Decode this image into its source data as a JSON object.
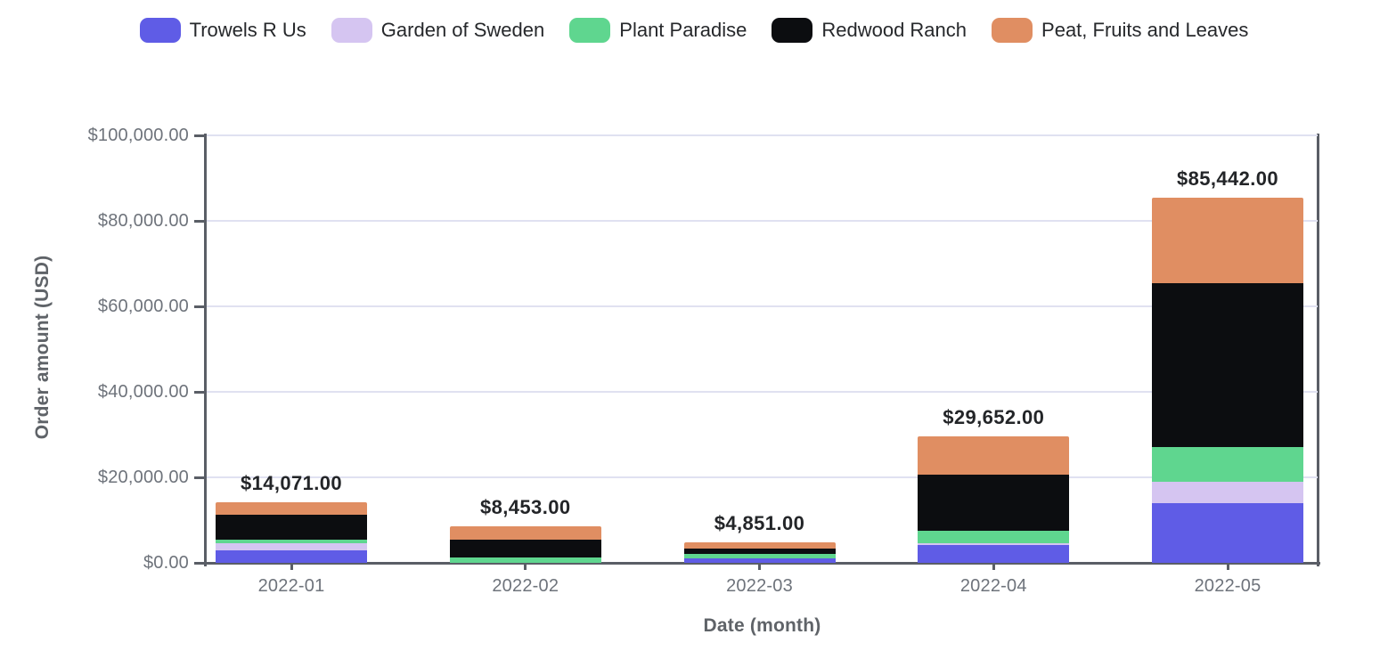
{
  "chart_data": {
    "type": "bar",
    "stacked": true,
    "title": "",
    "xlabel": "Date (month)",
    "ylabel": "Order amount (USD)",
    "legend_position": "top",
    "grid": true,
    "categories": [
      "2022-01",
      "2022-02",
      "2022-03",
      "2022-04",
      "2022-05"
    ],
    "series": [
      {
        "name": "Trowels R Us",
        "color": "#5f5ce6",
        "values": [
          2900,
          0,
          950,
          4100,
          14000
        ]
      },
      {
        "name": "Garden of Sweden",
        "color": "#d5c5f1",
        "values": [
          1650,
          0,
          0,
          490,
          5000
        ]
      },
      {
        "name": "Plant Paradise",
        "color": "#5fd68f",
        "values": [
          890,
          1250,
          1070,
          2960,
          8050
        ]
      },
      {
        "name": "Redwood Ranch",
        "color": "#0c0d10",
        "values": [
          5730,
          4100,
          1260,
          13150,
          38450
        ]
      },
      {
        "name": "Peat, Fruits and Leaves",
        "color": "#e08e62",
        "values": [
          2901,
          3103,
          1571,
          8952,
          19942
        ]
      }
    ],
    "totals": [
      14071,
      8453,
      4851,
      29652,
      85442
    ],
    "total_labels": [
      "$14,071.00",
      "$8,453.00",
      "$4,851.00",
      "$29,652.00",
      "$85,442.00"
    ],
    "ylim": [
      0,
      100000
    ],
    "y_ticks": [
      0,
      20000,
      40000,
      60000,
      80000,
      100000
    ],
    "y_tick_labels": [
      "$0.00",
      "$20,000.00",
      "$40,000.00",
      "$60,000.00",
      "$80,000.00",
      "$100,000.00"
    ]
  },
  "style": {
    "grid_color": "#e0e1f1",
    "axis_color": "#5a5e66",
    "tick_label_color": "#6e737b",
    "axis_title_color": "#5f6368",
    "total_label_color": "#232528",
    "legend_text_color": "#26282b",
    "background": "#ffffff"
  }
}
